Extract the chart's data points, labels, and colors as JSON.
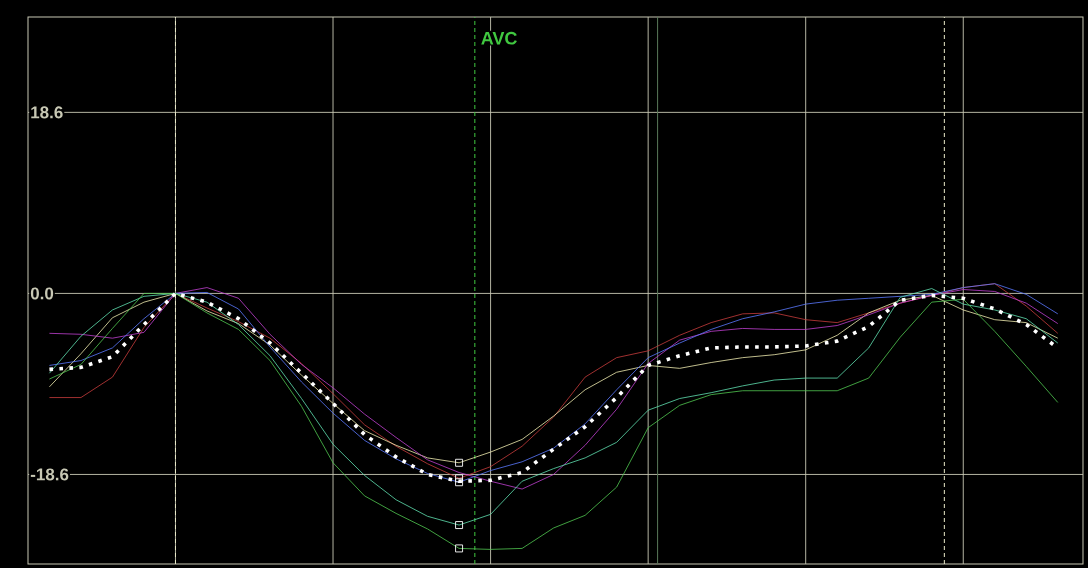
{
  "chart_data": {
    "type": "line",
    "categories": [
      null,
      null,
      null,
      null,
      null,
      null,
      null,
      null,
      null,
      null,
      null,
      null,
      null,
      null,
      null,
      null,
      null,
      null,
      null,
      null,
      null,
      null,
      null,
      null,
      null,
      null,
      null,
      null,
      null,
      null,
      null,
      null,
      null
    ],
    "ylim": [
      -27.8,
      28.4
    ],
    "yticks": [
      -18.6,
      {
        "value": 0,
        "label": "0.0"
      },
      18.6
    ],
    "tick_labels": "y",
    "grid": true,
    "marker": "none",
    "series": [
      {
        "color": "#c83c3c",
        "values": [
          -10.7,
          -10.7,
          -8.6,
          -3.5,
          0,
          -1.5,
          -2.9,
          -4.6,
          -7.2,
          -10.3,
          -13.5,
          -15.7,
          -17.5,
          -19.0,
          -17.8,
          -15.7,
          -12.7,
          -8.6,
          -6.6,
          -5.9,
          -4.3,
          -3.0,
          -2.1,
          -2.0,
          -2.7,
          -3.0,
          -2.0,
          -1.0,
          -0.2,
          0.6,
          1.0,
          -1.3,
          -4.1
        ]
      },
      {
        "color": "#f0ecb0",
        "values": [
          -9.6,
          -6.2,
          -2.5,
          -0.9,
          0,
          -1.8,
          -3.1,
          -5.3,
          -8.4,
          -11.3,
          -14.1,
          -15.6,
          -16.9,
          -17.4,
          -16.3,
          -15.0,
          -12.6,
          -9.9,
          -8.1,
          -7.4,
          -7.7,
          -7.1,
          -6.6,
          -6.3,
          -5.8,
          -4.3,
          -2.0,
          -0.7,
          -0.2,
          -1.7,
          -2.7,
          -3.0,
          -4.6
        ]
      },
      {
        "color": "#c040d0",
        "values": [
          -4.1,
          -4.2,
          -4.6,
          -4.0,
          0,
          0.6,
          -0.5,
          -4.2,
          -7.3,
          -9.7,
          -12.4,
          -14.8,
          -17.1,
          -18.4,
          -19.3,
          -20.1,
          -18.6,
          -15.6,
          -11.9,
          -7.2,
          -4.8,
          -3.9,
          -3.6,
          -3.7,
          -3.7,
          -3.3,
          -2.2,
          -1.0,
          -0.2,
          0.4,
          0.2,
          -1.0,
          -3.1
        ]
      },
      {
        "color": "#5a78ff",
        "values": [
          -7.4,
          -6.9,
          -5.6,
          -2.6,
          0,
          0.1,
          -1.6,
          -5.5,
          -9.1,
          -12.3,
          -15.1,
          -17.0,
          -18.5,
          -19.4,
          -18.2,
          -17.3,
          -15.9,
          -13.4,
          -9.9,
          -6.6,
          -5.1,
          -3.7,
          -2.6,
          -1.9,
          -1.1,
          -0.7,
          -0.5,
          -0.3,
          -0.1,
          0.6,
          1.0,
          -0.1,
          -2.1
        ]
      },
      {
        "color": "#60e0b0",
        "values": [
          -8.2,
          -4.4,
          -1.7,
          -0.3,
          0,
          -0.9,
          -3.2,
          -6.4,
          -10.8,
          -15.5,
          -18.7,
          -21.2,
          -22.9,
          -23.8,
          -22.7,
          -19.3,
          -18.0,
          -16.9,
          -15.3,
          -12.0,
          -10.8,
          -10.2,
          -9.5,
          -8.9,
          -8.7,
          -8.7,
          -5.6,
          -0.4,
          0.5,
          -1.1,
          -1.7,
          -2.6,
          -5.1
        ]
      },
      {
        "color": "#50c850",
        "values": [
          -8.8,
          -7.3,
          -3.6,
          0.0,
          0,
          -2.0,
          -3.7,
          -6.9,
          -11.6,
          -17.4,
          -20.8,
          -22.6,
          -24.2,
          -26.2,
          -26.3,
          -26.2,
          -24.1,
          -22.8,
          -19.9,
          -13.8,
          -11.5,
          -10.4,
          -10.0,
          -10.0,
          -10.0,
          -10.0,
          -8.7,
          -4.5,
          -0.9,
          -0.6,
          -3.9,
          -7.5,
          -11.2
        ]
      },
      {
        "color": "#ffffff",
        "line_style": "dotted",
        "values": [
          -7.8,
          -7.6,
          -6.5,
          -3.2,
          0,
          -0.9,
          -2.6,
          -5.1,
          -8.2,
          -11.3,
          -14.5,
          -16.8,
          -18.6,
          -19.3,
          -19.2,
          -18.4,
          -16.0,
          -13.7,
          -10.7,
          -7.4,
          -6.4,
          -5.6,
          -5.5,
          -5.5,
          -5.4,
          -4.9,
          -3.4,
          -0.7,
          -0.2,
          -0.5,
          -1.6,
          -3.2,
          -5.6
        ]
      },
      {
        "type": "scatter",
        "marker": "square",
        "color": "#ffffff",
        "values": [
          null,
          null,
          null,
          null,
          null,
          null,
          null,
          null,
          null,
          null,
          null,
          null,
          null,
          -17.4,
          null,
          null,
          null,
          null,
          null,
          null,
          null,
          null,
          null,
          null,
          null,
          null,
          null,
          null,
          null,
          null,
          null,
          null,
          null
        ]
      },
      {
        "type": "scatter",
        "marker": "square",
        "color": "#ffffff",
        "values": [
          null,
          null,
          null,
          null,
          null,
          null,
          null,
          null,
          null,
          null,
          null,
          null,
          null,
          -19.0,
          null,
          null,
          null,
          null,
          null,
          null,
          null,
          null,
          null,
          null,
          null,
          null,
          null,
          null,
          null,
          null,
          null,
          null,
          null
        ]
      },
      {
        "type": "scatter",
        "marker": "square",
        "color": "#ffffff",
        "values": [
          null,
          null,
          null,
          null,
          null,
          null,
          null,
          null,
          null,
          null,
          null,
          null,
          null,
          -19.4,
          null,
          null,
          null,
          null,
          null,
          null,
          null,
          null,
          null,
          null,
          null,
          null,
          null,
          null,
          null,
          null,
          null,
          null,
          null
        ]
      },
      {
        "type": "scatter",
        "marker": "square",
        "color": "#ffffff",
        "values": [
          null,
          null,
          null,
          null,
          null,
          null,
          null,
          null,
          null,
          null,
          null,
          null,
          null,
          -23.8,
          null,
          null,
          null,
          null,
          null,
          null,
          null,
          null,
          null,
          null,
          null,
          null,
          null,
          null,
          null,
          null,
          null,
          null,
          null
        ]
      },
      {
        "type": "scatter",
        "marker": "square",
        "color": "#ffffff",
        "values": [
          null,
          null,
          null,
          null,
          null,
          null,
          null,
          null,
          null,
          null,
          null,
          null,
          null,
          -26.2,
          null,
          null,
          null,
          null,
          null,
          null,
          null,
          null,
          null,
          null,
          null,
          null,
          null,
          null,
          null,
          null,
          null,
          null,
          null
        ]
      }
    ],
    "annotations": [
      "AVC"
    ]
  }
}
